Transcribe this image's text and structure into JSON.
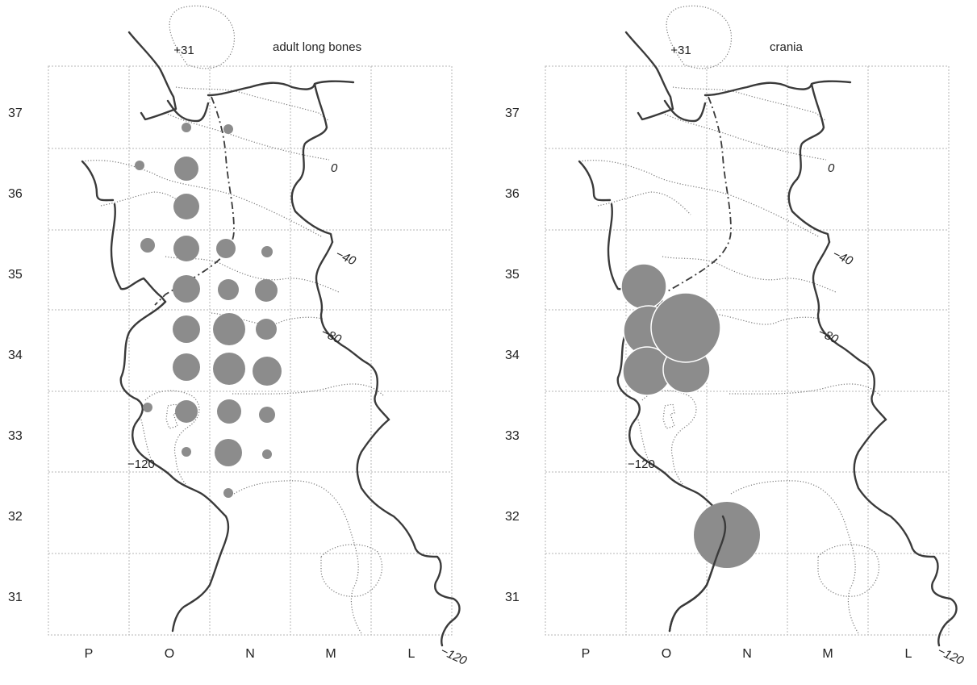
{
  "panels": [
    {
      "title": "adult long bones",
      "row_labels": [
        "37",
        "36",
        "35",
        "34",
        "33",
        "32",
        "31"
      ],
      "col_labels": [
        "P",
        "O",
        "N",
        "M",
        "L"
      ],
      "labels": {
        "top": "+31",
        "d0": "0",
        "d40": "−40",
        "d80": "−80",
        "d120": "−120",
        "d120b": "−120"
      }
    },
    {
      "title": "crania",
      "row_labels": [
        "37",
        "36",
        "35",
        "34",
        "33",
        "32",
        "31"
      ],
      "col_labels": [
        "P",
        "O",
        "N",
        "M",
        "L"
      ],
      "labels": {
        "top": "+31",
        "d0": "0",
        "d40": "−40",
        "d80": "−80",
        "d120": "−120",
        "d120b": "−120"
      }
    }
  ],
  "colors": {
    "find": "#8c8c8c",
    "wall": "#3a3a3a",
    "contour": "#7a7a7a",
    "grid": "#b5b5b5"
  }
}
